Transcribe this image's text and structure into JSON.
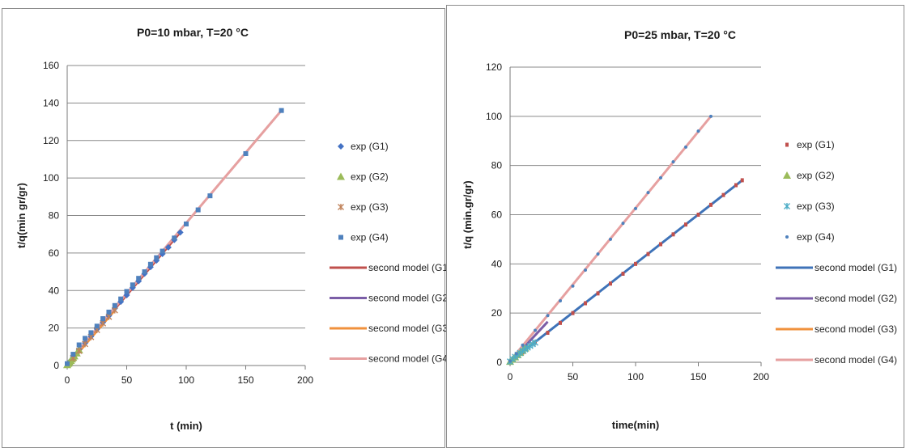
{
  "colors": {
    "G1": "#4472c4",
    "G1_model_left": "#c0504d",
    "G2": "#9bbb59",
    "G2_model": "#7b5ea7",
    "G3": "#c0825a",
    "G3_model": "#f0913c",
    "G4": "#4f81bd",
    "G4_model": "#e6a0a0",
    "G1_exp_right": "#c0504d",
    "G3_exp_right": "#4bacc6",
    "G1_model_right": "#3f73b8"
  },
  "chart_data": [
    {
      "type": "scatter",
      "title": "P0=10 mbar, T=20 °C",
      "xlabel": "t (min)",
      "ylabel": "t/q(min gr/gr)",
      "xlim": [
        0,
        200
      ],
      "ylim": [
        0,
        160
      ],
      "xticks": [
        0,
        50,
        100,
        150,
        200
      ],
      "yticks": [
        0,
        20,
        40,
        60,
        80,
        100,
        120,
        140,
        160
      ],
      "grid": "horizontal",
      "legend": "right",
      "series": [
        {
          "name": "exp (G1)",
          "kind": "marker",
          "marker": "diamond",
          "color": "#4472c4",
          "x": [
            2,
            5,
            10,
            15,
            20,
            25,
            30,
            35,
            40,
            45,
            50,
            55,
            60,
            65,
            70,
            75,
            80,
            85,
            90,
            95
          ],
          "y": [
            2,
            4.5,
            8.5,
            12,
            15.5,
            19.5,
            23,
            26.5,
            30.5,
            34,
            37.5,
            41.5,
            45,
            49,
            52.5,
            56,
            59.5,
            63,
            67,
            71
          ]
        },
        {
          "name": "exp (G2)",
          "kind": "marker",
          "marker": "triangle",
          "color": "#9bbb59",
          "x": [
            0,
            1,
            2,
            3,
            4,
            5,
            6,
            8,
            10
          ],
          "y": [
            0.3,
            1,
            1.8,
            2.6,
            3.4,
            4.2,
            5,
            6.6,
            8.2
          ]
        },
        {
          "name": "exp (G3)",
          "kind": "marker",
          "marker": "star",
          "color": "#c0825a",
          "x": [
            5,
            10,
            15,
            20,
            25,
            30,
            35,
            40
          ],
          "y": [
            4,
            7.8,
            11.5,
            15.2,
            19,
            22.5,
            26,
            29.5
          ]
        },
        {
          "name": "exp (G4)",
          "kind": "marker",
          "marker": "square",
          "color": "#4f81bd",
          "x": [
            0,
            5,
            10,
            15,
            20,
            25,
            30,
            35,
            40,
            45,
            50,
            55,
            60,
            65,
            70,
            75,
            80,
            90,
            100,
            110,
            120,
            150,
            180
          ],
          "y": [
            1,
            6,
            11,
            14.5,
            17.5,
            21,
            25,
            28.5,
            32,
            35.5,
            39.5,
            43,
            46.5,
            50,
            54,
            57.5,
            61,
            68,
            75.5,
            83,
            90.5,
            113,
            136
          ]
        },
        {
          "name": "second model (G1)",
          "kind": "line",
          "color": "#c0504d",
          "x": [
            0,
            95
          ],
          "y": [
            0.5,
            71
          ]
        },
        {
          "name": "second model (G2)",
          "kind": "line",
          "color": "#7b5ea7",
          "x": [
            0,
            10
          ],
          "y": [
            0,
            8.2
          ]
        },
        {
          "name": "second model (G3)",
          "kind": "line",
          "color": "#f0913c",
          "x": [
            0,
            40
          ],
          "y": [
            0,
            29.5
          ]
        },
        {
          "name": "second model (G4)",
          "kind": "line",
          "color": "#e6a0a0",
          "x": [
            0,
            180
          ],
          "y": [
            1,
            136
          ]
        }
      ]
    },
    {
      "type": "scatter",
      "title": "P0=25 mbar, T=20 °C",
      "xlabel": "time(min)",
      "ylabel": "t/q (min.gr/gr)",
      "xlim": [
        0,
        200
      ],
      "ylim": [
        0,
        120
      ],
      "xticks": [
        0,
        50,
        100,
        150,
        200
      ],
      "yticks": [
        0,
        20,
        40,
        60,
        80,
        100,
        120
      ],
      "grid": "horizontal",
      "legend": "right",
      "series": [
        {
          "name": "exp (G1)",
          "kind": "marker",
          "marker": "dash",
          "color": "#c0504d",
          "x": [
            2,
            10,
            20,
            30,
            40,
            50,
            60,
            70,
            80,
            90,
            100,
            110,
            120,
            130,
            140,
            150,
            160,
            170,
            180,
            185
          ],
          "y": [
            1,
            4,
            8,
            12,
            16,
            20,
            24,
            28,
            32,
            36,
            40,
            44,
            48,
            52,
            56,
            60,
            64,
            68,
            72,
            74
          ]
        },
        {
          "name": "exp (G2)",
          "kind": "marker",
          "marker": "triangle",
          "color": "#9bbb59",
          "x": [
            0,
            2,
            4,
            6,
            8,
            10,
            12
          ],
          "y": [
            0.3,
            1.2,
            2.1,
            3,
            3.9,
            4.8,
            5.7
          ]
        },
        {
          "name": "exp (G3)",
          "kind": "marker",
          "marker": "star",
          "color": "#4bacc6",
          "x": [
            0,
            2,
            4,
            6,
            8,
            10,
            12,
            14,
            16,
            18,
            20
          ],
          "y": [
            0.3,
            1.3,
            2.2,
            3,
            3.8,
            4.6,
            5.3,
            6,
            6.7,
            7.4,
            8
          ]
        },
        {
          "name": "exp (G4)",
          "kind": "marker",
          "marker": "dot",
          "color": "#4f81bd",
          "x": [
            0,
            5,
            10,
            20,
            30,
            40,
            50,
            60,
            70,
            80,
            90,
            100,
            110,
            120,
            130,
            140,
            150,
            160
          ],
          "y": [
            0.5,
            3.5,
            7,
            13,
            19,
            25,
            31,
            37.5,
            44,
            50,
            56.5,
            62.5,
            69,
            75,
            81.5,
            87.5,
            94,
            100
          ]
        },
        {
          "name": "second model (G1)",
          "kind": "line",
          "color": "#3f73b8",
          "x": [
            0,
            185
          ],
          "y": [
            0.3,
            74
          ]
        },
        {
          "name": "second model (G2)",
          "kind": "line",
          "color": "#7b5ea7",
          "x": [
            0,
            30
          ],
          "y": [
            0,
            16.5
          ]
        },
        {
          "name": "second model (G3)",
          "kind": "line",
          "color": "#f0913c",
          "x": [
            0,
            20
          ],
          "y": [
            0,
            8.5
          ]
        },
        {
          "name": "second model (G4)",
          "kind": "line",
          "color": "#e6a0a0",
          "x": [
            0,
            160
          ],
          "y": [
            0.5,
            100
          ]
        }
      ]
    }
  ]
}
